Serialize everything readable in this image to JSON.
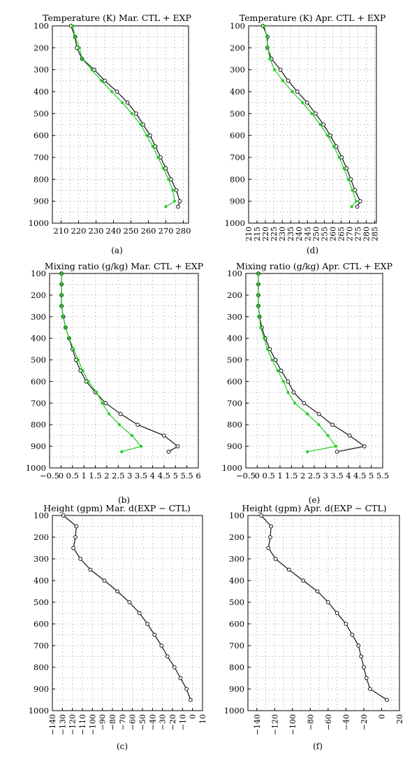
{
  "colors": {
    "ctl": "#111111",
    "exp": "#22cc22",
    "grid": "#888888"
  },
  "chart_data": [
    {
      "panel": "(a)",
      "type": "line",
      "title": "Temperature (K) Mar. CTL + EXP",
      "xlabel": "",
      "ylabel": "",
      "xlim": [
        205,
        283
      ],
      "ylim": [
        100,
        1000
      ],
      "y_inverted": true,
      "xticks": [
        210,
        220,
        230,
        240,
        250,
        260,
        270,
        280
      ],
      "xtick_rotation": 0,
      "yticks": [
        100,
        200,
        300,
        400,
        500,
        600,
        700,
        800,
        900,
        1000
      ],
      "xgrid": [
        205,
        210,
        215,
        220,
        225,
        230,
        235,
        240,
        245,
        250,
        255,
        260,
        265,
        270,
        275,
        280
      ],
      "ygrid": [
        150,
        200,
        250,
        300,
        350,
        400,
        450,
        500,
        550,
        600,
        650,
        700,
        750,
        800,
        850,
        900,
        950
      ],
      "series": [
        {
          "label": "CTL",
          "marker": "circle",
          "x": [
            215.7,
            218,
            219,
            222,
            229,
            235,
            242,
            248,
            253,
            257,
            261,
            264,
            267,
            270,
            273,
            276,
            278,
            277
          ],
          "y": [
            100,
            150,
            200,
            250,
            300,
            350,
            400,
            450,
            500,
            550,
            600,
            650,
            700,
            750,
            800,
            850,
            900,
            925
          ]
        },
        {
          "label": "EXP",
          "marker": "dot",
          "x": [
            216.7,
            218,
            220.5,
            222,
            227.5,
            233,
            239,
            245,
            250.5,
            255.5,
            259,
            262.5,
            265.5,
            268.5,
            271.5,
            274,
            275,
            270
          ],
          "y": [
            100,
            150,
            200,
            250,
            300,
            350,
            400,
            450,
            500,
            550,
            600,
            650,
            700,
            750,
            800,
            850,
            900,
            925
          ]
        }
      ]
    },
    {
      "panel": "(d)",
      "type": "line",
      "title": "Temperature (K) Apr. CTL + EXP",
      "xlabel": "",
      "ylabel": "",
      "xlim": [
        210,
        286
      ],
      "ylim": [
        100,
        1000
      ],
      "y_inverted": true,
      "xticks": [
        210,
        215,
        220,
        225,
        230,
        235,
        240,
        245,
        250,
        255,
        260,
        265,
        270,
        275,
        280,
        285
      ],
      "xtick_rotation": -90,
      "yticks": [
        100,
        200,
        300,
        400,
        500,
        600,
        700,
        800,
        900,
        1000
      ],
      "xgrid": [
        210,
        215,
        220,
        225,
        230,
        235,
        240,
        245,
        250,
        255,
        260,
        265,
        270,
        275,
        280,
        285
      ],
      "ygrid": [
        150,
        200,
        250,
        300,
        350,
        400,
        450,
        500,
        550,
        600,
        650,
        700,
        750,
        800,
        850,
        900,
        950
      ],
      "series": [
        {
          "label": "CTL",
          "marker": "circle",
          "x": [
            218.5,
            221.2,
            221.2,
            223.6,
            228.9,
            233.5,
            239,
            244.8,
            249.8,
            254.5,
            258.6,
            262.2,
            265.4,
            268.3,
            270.8,
            273.2,
            276.4,
            274.6
          ],
          "y": [
            100,
            150,
            200,
            250,
            300,
            350,
            400,
            450,
            500,
            550,
            600,
            650,
            700,
            750,
            800,
            850,
            900,
            925
          ]
        },
        {
          "label": "EXP",
          "marker": "dot",
          "x": [
            219.4,
            220.7,
            221.5,
            222.6,
            225.4,
            230.3,
            236,
            242,
            247.5,
            252.6,
            256.9,
            260.6,
            263.9,
            266.6,
            269.3,
            271.7,
            274,
            271.3
          ],
          "y": [
            100,
            150,
            200,
            250,
            300,
            350,
            400,
            450,
            500,
            550,
            600,
            650,
            700,
            750,
            800,
            850,
            900,
            925
          ]
        }
      ]
    },
    {
      "panel": "(b)",
      "type": "line",
      "title": "Mixing ratio (g/kg) Mar. CTL + EXP",
      "xlabel": "",
      "ylabel": "",
      "xlim": [
        -0.5,
        6
      ],
      "ylim": [
        100,
        1000
      ],
      "y_inverted": true,
      "xticks": [
        -0.5,
        0,
        0.5,
        1,
        1.5,
        2,
        2.5,
        3,
        3.5,
        4,
        4.5,
        5,
        5.5,
        6
      ],
      "xtick_rotation": 0,
      "yticks": [
        100,
        200,
        300,
        400,
        500,
        600,
        700,
        800,
        900,
        1000
      ],
      "xgrid": [
        0,
        0.5,
        1,
        1.5,
        2,
        2.5,
        3,
        3.5,
        4,
        4.5,
        5,
        5.5
      ],
      "ygrid": [
        150,
        200,
        250,
        300,
        350,
        400,
        450,
        500,
        550,
        600,
        650,
        700,
        750,
        800,
        850,
        900,
        950
      ],
      "series": [
        {
          "label": "CTL",
          "marker": "circle",
          "x": [
            0.02,
            0.02,
            0.02,
            0.02,
            0.1,
            0.2,
            0.35,
            0.5,
            0.65,
            0.85,
            1.1,
            1.5,
            1.95,
            2.6,
            3.35,
            4.5,
            5.1,
            4.7
          ],
          "y": [
            100,
            150,
            200,
            250,
            300,
            350,
            400,
            450,
            500,
            550,
            600,
            650,
            700,
            750,
            800,
            850,
            900,
            925
          ]
        },
        {
          "label": "EXP",
          "marker": "dot",
          "x": [
            0.02,
            0.02,
            0.02,
            0.02,
            0.1,
            0.2,
            0.35,
            0.55,
            0.75,
            0.95,
            1.2,
            1.55,
            1.8,
            2.1,
            2.55,
            3.1,
            3.5,
            2.65
          ],
          "y": [
            100,
            150,
            200,
            250,
            300,
            350,
            400,
            450,
            500,
            550,
            600,
            650,
            700,
            750,
            800,
            850,
            900,
            925
          ]
        }
      ]
    },
    {
      "panel": "(e)",
      "type": "line",
      "title": "Mixing ratio (g/kg) Apr. CTL + EXP",
      "xlabel": "",
      "ylabel": "",
      "xlim": [
        -0.5,
        5.5
      ],
      "ylim": [
        100,
        1000
      ],
      "y_inverted": true,
      "xticks": [
        -0.5,
        0,
        0.5,
        1,
        1.5,
        2,
        2.5,
        3,
        3.5,
        4,
        4.5,
        5,
        5.5
      ],
      "xtick_rotation": 0,
      "yticks": [
        100,
        200,
        300,
        400,
        500,
        600,
        700,
        800,
        900,
        1000
      ],
      "xgrid": [
        0,
        0.5,
        1,
        1.5,
        2,
        2.5,
        3,
        3.5,
        4,
        4.5,
        5
      ],
      "ygrid": [
        150,
        200,
        250,
        300,
        350,
        400,
        450,
        500,
        550,
        600,
        650,
        700,
        750,
        800,
        850,
        900,
        950
      ],
      "series": [
        {
          "label": "CTL",
          "marker": "circle",
          "x": [
            0.05,
            0.05,
            0.05,
            0.05,
            0.1,
            0.2,
            0.35,
            0.55,
            0.8,
            1.05,
            1.35,
            1.6,
            2.05,
            2.7,
            3.3,
            4.05,
            4.7,
            3.5
          ],
          "y": [
            100,
            150,
            200,
            250,
            300,
            350,
            400,
            450,
            500,
            550,
            600,
            650,
            700,
            750,
            800,
            850,
            900,
            925
          ]
        },
        {
          "label": "EXP",
          "marker": "dot",
          "x": [
            0.05,
            0.05,
            0.05,
            0.05,
            0.1,
            0.15,
            0.3,
            0.45,
            0.65,
            0.9,
            1.15,
            1.35,
            1.65,
            2.2,
            2.7,
            3.1,
            3.45,
            2.2
          ],
          "y": [
            100,
            150,
            200,
            250,
            300,
            350,
            400,
            450,
            500,
            550,
            600,
            650,
            700,
            750,
            800,
            850,
            900,
            925
          ]
        }
      ]
    },
    {
      "panel": "(c)",
      "type": "line",
      "title": "Height (gpm) Mar. d(EXP − CTL)",
      "xlabel": "",
      "ylabel": "",
      "xlim": [
        -140,
        10
      ],
      "ylim": [
        100,
        1000
      ],
      "y_inverted": true,
      "xticks": [
        -140,
        -130,
        -120,
        -110,
        -100,
        -90,
        -80,
        -70,
        -60,
        -50,
        -40,
        -30,
        -20,
        -10,
        0,
        10
      ],
      "xtick_rotation": -90,
      "yticks": [
        100,
        200,
        300,
        400,
        500,
        600,
        700,
        800,
        900,
        1000
      ],
      "xgrid": [
        -130,
        -120,
        -110,
        -100,
        -90,
        -80,
        -70,
        -60,
        -50,
        -40,
        -30,
        -20,
        -10,
        0
      ],
      "ygrid": [
        150,
        200,
        250,
        300,
        350,
        400,
        450,
        500,
        550,
        600,
        650,
        700,
        750,
        800,
        850,
        900,
        950
      ],
      "series": [
        {
          "label": "d(EXP − CTL)",
          "marker": "circle",
          "x": [
            -129,
            -116,
            -117,
            -119,
            -112,
            -102,
            -88,
            -75,
            -63,
            -53,
            -45,
            -38,
            -31,
            -25,
            -18,
            -12,
            -6,
            -2
          ],
          "y": [
            100,
            150,
            200,
            250,
            300,
            350,
            400,
            450,
            500,
            550,
            600,
            650,
            700,
            750,
            800,
            850,
            900,
            950
          ]
        }
      ]
    },
    {
      "panel": "(f)",
      "type": "line",
      "title": "Height (gpm) Apr. d(EXP − CTL)",
      "xlabel": "",
      "ylabel": "",
      "xlim": [
        -150,
        20
      ],
      "ylim": [
        100,
        1000
      ],
      "y_inverted": true,
      "xticks": [
        -140,
        -120,
        -100,
        -80,
        -60,
        -40,
        -20,
        0,
        20
      ],
      "xtick_rotation": -90,
      "yticks": [
        100,
        200,
        300,
        400,
        500,
        600,
        700,
        800,
        900,
        1000
      ],
      "xgrid": [
        -140,
        -130,
        -120,
        -110,
        -100,
        -90,
        -80,
        -70,
        -60,
        -50,
        -40,
        -30,
        -20,
        -10,
        0,
        10
      ],
      "ygrid": [
        150,
        200,
        250,
        300,
        350,
        400,
        450,
        500,
        550,
        600,
        650,
        700,
        750,
        800,
        850,
        900,
        950
      ],
      "series": [
        {
          "label": "d(EXP − CTL)",
          "marker": "circle",
          "x": [
            -135,
            -124,
            -125,
            -127,
            -119,
            -104,
            -88,
            -72,
            -60,
            -50,
            -40,
            -33,
            -26,
            -23,
            -20,
            -17,
            -13,
            6
          ],
          "y": [
            100,
            150,
            200,
            250,
            300,
            350,
            400,
            450,
            500,
            550,
            600,
            650,
            700,
            750,
            800,
            850,
            900,
            950
          ]
        }
      ]
    }
  ]
}
